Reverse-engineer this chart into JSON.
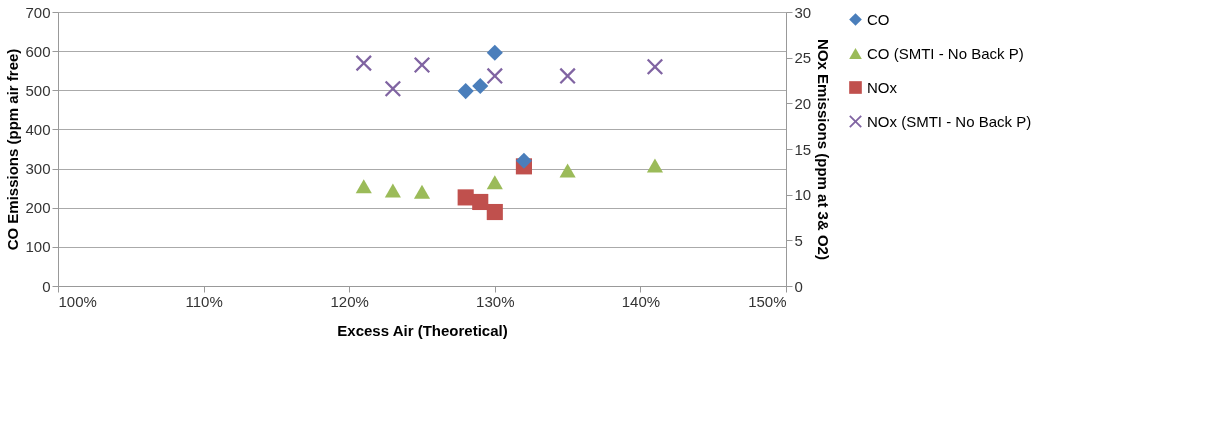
{
  "chart_data": {
    "type": "scatter",
    "xlabel": "Excess Air (Theoretical)",
    "ylabel": "CO Emissions (ppm air free)",
    "y2label": "NOx Emissions (ppm at 3& O2)",
    "xlim": [
      100,
      150
    ],
    "xticks": [
      {
        "value": 100,
        "label": "100%"
      },
      {
        "value": 110,
        "label": "110%"
      },
      {
        "value": 120,
        "label": "120%"
      },
      {
        "value": 130,
        "label": "130%"
      },
      {
        "value": 140,
        "label": "140%"
      },
      {
        "value": 150,
        "label": "150%"
      }
    ],
    "ylim": [
      0,
      700
    ],
    "yticks": [
      0,
      100,
      200,
      300,
      400,
      500,
      600,
      700
    ],
    "y2lim": [
      0,
      30
    ],
    "y2ticks": [
      0,
      5,
      10,
      15,
      20,
      25,
      30
    ],
    "grid": "y",
    "legend": "right",
    "series": [
      {
        "name": "CO",
        "color": "#4a7ebb",
        "marker": "diamond",
        "x": [
          128,
          129,
          130,
          132
        ],
        "values": [
          498,
          511,
          596,
          320
        ]
      },
      {
        "name": "CO (SMTI - No Back P)",
        "color": "#9bbb59",
        "marker": "triangle",
        "x": [
          121,
          123,
          125,
          130,
          135,
          141
        ],
        "values": [
          255,
          244,
          241,
          265,
          295,
          308
        ]
      },
      {
        "name": "NOx",
        "color": "#c0504d",
        "marker": "square",
        "axis": "y2",
        "x": [
          128,
          129,
          130,
          132
        ],
        "values": [
          9.7,
          9.2,
          8.1,
          13.1
        ]
      },
      {
        "name": "NOx (SMTI - No Back P)",
        "color": "#8064a2",
        "marker": "cross",
        "axis": "y2",
        "x": [
          121,
          123,
          125,
          130,
          135,
          141
        ],
        "values": [
          24.4,
          21.6,
          24.2,
          23.0,
          23.0,
          24.0
        ]
      }
    ]
  }
}
